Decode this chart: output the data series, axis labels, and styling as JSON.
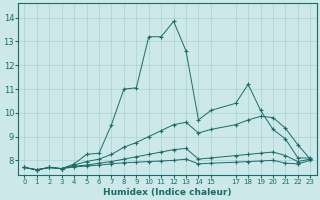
{
  "xlabel": "Humidex (Indice chaleur)",
  "background_color": "#cce8e8",
  "grid_color": "#aad0d0",
  "line_color": "#1a6b6b",
  "xlim": [
    -0.5,
    23.5
  ],
  "ylim": [
    7.4,
    14.6
  ],
  "yticks": [
    8,
    9,
    10,
    11,
    12,
    13,
    14
  ],
  "xticks": [
    0,
    1,
    2,
    3,
    4,
    5,
    6,
    7,
    8,
    9,
    10,
    11,
    12,
    13,
    14,
    15,
    17,
    18,
    19,
    20,
    21,
    22,
    23
  ],
  "xtick_labels": [
    "0",
    "1",
    "2",
    "3",
    "4",
    "5",
    "6",
    "7",
    "8",
    "9",
    "10",
    "11",
    "12",
    "13",
    "14",
    "15",
    "17",
    "18",
    "19",
    "20",
    "21",
    "22",
    "23"
  ],
  "lines": [
    {
      "x": [
        0,
        1,
        2,
        3,
        4,
        5,
        6,
        7,
        8,
        9,
        10,
        11,
        12,
        13,
        14,
        15,
        17,
        18,
        19,
        20,
        21,
        22,
        23
      ],
      "y": [
        7.7,
        7.6,
        7.7,
        7.65,
        7.85,
        8.25,
        8.3,
        9.5,
        11.0,
        11.05,
        13.2,
        13.2,
        13.85,
        12.6,
        9.7,
        10.1,
        10.4,
        11.2,
        10.1,
        9.3,
        8.9,
        8.1,
        8.1
      ]
    },
    {
      "x": [
        0,
        1,
        2,
        3,
        4,
        5,
        6,
        7,
        8,
        9,
        10,
        11,
        12,
        13,
        14,
        15,
        17,
        18,
        19,
        20,
        21,
        22,
        23
      ],
      "y": [
        7.7,
        7.6,
        7.7,
        7.65,
        7.8,
        7.95,
        8.05,
        8.25,
        8.55,
        8.75,
        9.0,
        9.25,
        9.5,
        9.6,
        9.15,
        9.3,
        9.5,
        9.7,
        9.85,
        9.8,
        9.35,
        8.65,
        8.05
      ]
    },
    {
      "x": [
        0,
        1,
        2,
        3,
        4,
        5,
        6,
        7,
        8,
        9,
        10,
        11,
        12,
        13,
        14,
        15,
        17,
        18,
        19,
        20,
        21,
        22,
        23
      ],
      "y": [
        7.7,
        7.6,
        7.7,
        7.65,
        7.75,
        7.8,
        7.88,
        7.95,
        8.05,
        8.15,
        8.25,
        8.35,
        8.45,
        8.5,
        8.05,
        8.1,
        8.2,
        8.25,
        8.3,
        8.35,
        8.2,
        7.95,
        8.05
      ]
    },
    {
      "x": [
        0,
        1,
        2,
        3,
        4,
        5,
        6,
        7,
        8,
        9,
        10,
        11,
        12,
        13,
        14,
        15,
        17,
        18,
        19,
        20,
        21,
        22,
        23
      ],
      "y": [
        7.7,
        7.6,
        7.7,
        7.65,
        7.72,
        7.76,
        7.8,
        7.85,
        7.9,
        7.92,
        7.95,
        7.97,
        8.0,
        8.05,
        7.85,
        7.88,
        7.92,
        7.95,
        7.97,
        8.0,
        7.88,
        7.85,
        8.0
      ]
    }
  ]
}
